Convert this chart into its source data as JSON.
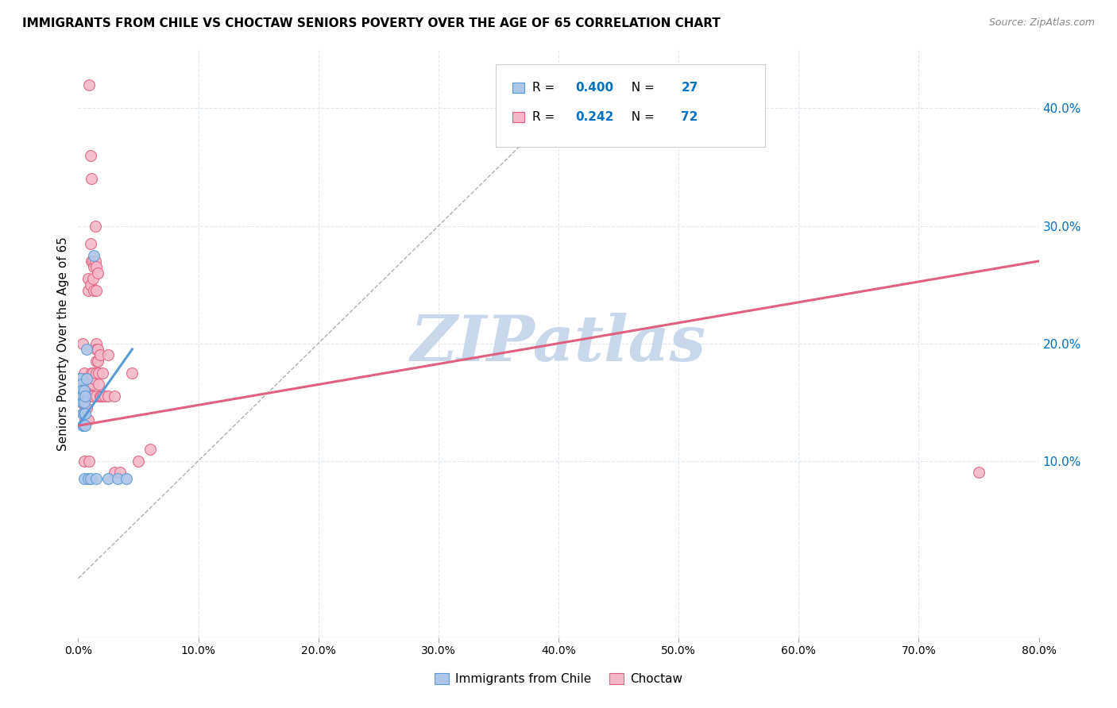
{
  "title": "IMMIGRANTS FROM CHILE VS CHOCTAW SENIORS POVERTY OVER THE AGE OF 65 CORRELATION CHART",
  "source": "Source: ZipAtlas.com",
  "ylabel": "Seniors Poverty Over the Age of 65",
  "xlim": [
    0.0,
    0.8
  ],
  "ylim": [
    -0.05,
    0.45
  ],
  "chile_color": "#aec6e8",
  "chile_edge_color": "#5b9bd5",
  "choctaw_color": "#f4b8c8",
  "choctaw_edge_color": "#e06080",
  "chile_R": 0.4,
  "chile_N": 27,
  "choctaw_R": 0.242,
  "choctaw_N": 72,
  "legend_color": "#0070c0",
  "watermark": "ZIPatlas",
  "watermark_color": "#c8d8ea",
  "chile_scatter": [
    [
      0.001,
      0.17
    ],
    [
      0.002,
      0.17
    ],
    [
      0.002,
      0.16
    ],
    [
      0.003,
      0.165
    ],
    [
      0.003,
      0.16
    ],
    [
      0.003,
      0.155
    ],
    [
      0.004,
      0.155
    ],
    [
      0.004,
      0.15
    ],
    [
      0.004,
      0.14
    ],
    [
      0.004,
      0.13
    ],
    [
      0.005,
      0.16
    ],
    [
      0.005,
      0.15
    ],
    [
      0.005,
      0.14
    ],
    [
      0.005,
      0.13
    ],
    [
      0.005,
      0.085
    ],
    [
      0.006,
      0.155
    ],
    [
      0.006,
      0.14
    ],
    [
      0.006,
      0.13
    ],
    [
      0.007,
      0.195
    ],
    [
      0.007,
      0.17
    ],
    [
      0.008,
      0.085
    ],
    [
      0.01,
      0.085
    ],
    [
      0.013,
      0.275
    ],
    [
      0.015,
      0.085
    ],
    [
      0.025,
      0.085
    ],
    [
      0.033,
      0.085
    ],
    [
      0.04,
      0.085
    ]
  ],
  "choctaw_scatter": [
    [
      0.003,
      0.17
    ],
    [
      0.003,
      0.16
    ],
    [
      0.003,
      0.15
    ],
    [
      0.004,
      0.2
    ],
    [
      0.004,
      0.17
    ],
    [
      0.004,
      0.165
    ],
    [
      0.004,
      0.155
    ],
    [
      0.005,
      0.175
    ],
    [
      0.005,
      0.165
    ],
    [
      0.005,
      0.155
    ],
    [
      0.005,
      0.1
    ],
    [
      0.006,
      0.17
    ],
    [
      0.006,
      0.165
    ],
    [
      0.006,
      0.155
    ],
    [
      0.006,
      0.145
    ],
    [
      0.006,
      0.135
    ],
    [
      0.007,
      0.165
    ],
    [
      0.007,
      0.155
    ],
    [
      0.007,
      0.145
    ],
    [
      0.007,
      0.135
    ],
    [
      0.008,
      0.255
    ],
    [
      0.008,
      0.245
    ],
    [
      0.008,
      0.155
    ],
    [
      0.008,
      0.135
    ],
    [
      0.009,
      0.42
    ],
    [
      0.009,
      0.165
    ],
    [
      0.009,
      0.155
    ],
    [
      0.009,
      0.1
    ],
    [
      0.01,
      0.36
    ],
    [
      0.01,
      0.285
    ],
    [
      0.01,
      0.25
    ],
    [
      0.01,
      0.155
    ],
    [
      0.011,
      0.34
    ],
    [
      0.011,
      0.27
    ],
    [
      0.011,
      0.175
    ],
    [
      0.012,
      0.27
    ],
    [
      0.012,
      0.255
    ],
    [
      0.012,
      0.175
    ],
    [
      0.012,
      0.165
    ],
    [
      0.012,
      0.155
    ],
    [
      0.013,
      0.265
    ],
    [
      0.013,
      0.245
    ],
    [
      0.013,
      0.17
    ],
    [
      0.014,
      0.3
    ],
    [
      0.014,
      0.27
    ],
    [
      0.015,
      0.265
    ],
    [
      0.015,
      0.245
    ],
    [
      0.015,
      0.2
    ],
    [
      0.015,
      0.195
    ],
    [
      0.015,
      0.185
    ],
    [
      0.015,
      0.175
    ],
    [
      0.015,
      0.155
    ],
    [
      0.016,
      0.26
    ],
    [
      0.016,
      0.195
    ],
    [
      0.016,
      0.185
    ],
    [
      0.017,
      0.175
    ],
    [
      0.017,
      0.165
    ],
    [
      0.018,
      0.19
    ],
    [
      0.018,
      0.155
    ],
    [
      0.019,
      0.155
    ],
    [
      0.02,
      0.175
    ],
    [
      0.02,
      0.155
    ],
    [
      0.022,
      0.155
    ],
    [
      0.025,
      0.19
    ],
    [
      0.025,
      0.155
    ],
    [
      0.03,
      0.155
    ],
    [
      0.03,
      0.09
    ],
    [
      0.035,
      0.09
    ],
    [
      0.045,
      0.175
    ],
    [
      0.05,
      0.1
    ],
    [
      0.06,
      0.11
    ],
    [
      0.75,
      0.09
    ]
  ],
  "chile_line": {
    "x0": 0.0,
    "y0": 0.13,
    "x1": 0.045,
    "y1": 0.195
  },
  "choctaw_line": {
    "x0": 0.0,
    "y0": 0.13,
    "x1": 0.8,
    "y1": 0.27
  },
  "diagonal_line": {
    "x0": 0.0,
    "y0": 0.0,
    "x1": 0.43,
    "y1": 0.43
  },
  "diagonal_line_color": "#b0b0b0",
  "chile_line_color": "#5b9bd5",
  "choctaw_line_color": "#e06080",
  "background_color": "#ffffff",
  "grid_color": "#e0e8f0"
}
